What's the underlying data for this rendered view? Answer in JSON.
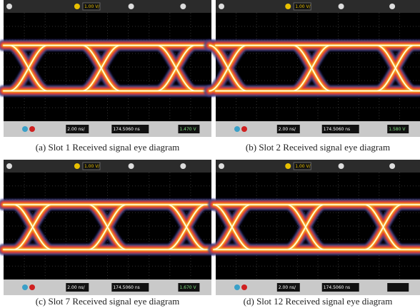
{
  "panels": [
    {
      "caption": "(a) Slot 1  Received signal eye diagram",
      "scope": {
        "channel_scale": "1.00 V/",
        "timebase": "2.00 ns/",
        "delay": "174.5060 ns",
        "trigger": "1.470 V"
      }
    },
    {
      "caption": "(b) Slot 2  Received signal eye diagram",
      "scope": {
        "channel_scale": "1.00 V/",
        "timebase": "2.00 ns/",
        "delay": "174.5060 ns",
        "trigger": "1.580 V"
      }
    },
    {
      "caption": "(c) Slot 7  Received signal eye diagram",
      "scope": {
        "channel_scale": "1.00 V/",
        "timebase": "2.00 ns/",
        "delay": "174.5060 ns",
        "trigger": "1.670 V"
      }
    },
    {
      "caption": "(d) Slot 12  Received signal eye diagram",
      "scope": {
        "channel_scale": "1.00 V/",
        "timebase": "2.00 ns/",
        "delay": "174.5060 ns"
      }
    }
  ]
}
